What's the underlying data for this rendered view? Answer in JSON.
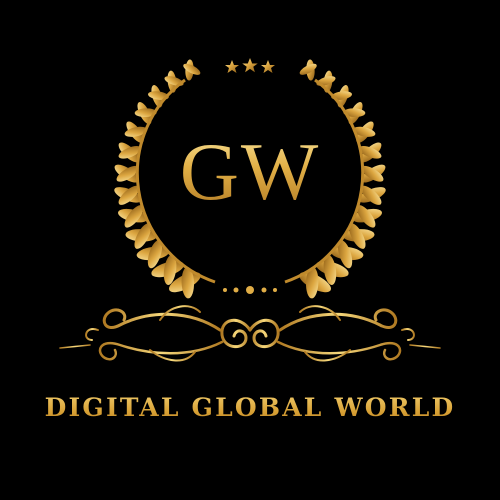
{
  "logo": {
    "monogram": "GW",
    "brand_name": "DIGITAL GLOBAL WORLD",
    "stars_count": 3,
    "icons": [
      "laurel-wreath-icon",
      "star-icon",
      "dot-ornament-icon",
      "flourish-divider-icon"
    ]
  },
  "colors": {
    "background": "#000000",
    "gold_light": "#f7d77a",
    "gold": "#d9a63a",
    "gold_dark": "#8a5a14"
  }
}
